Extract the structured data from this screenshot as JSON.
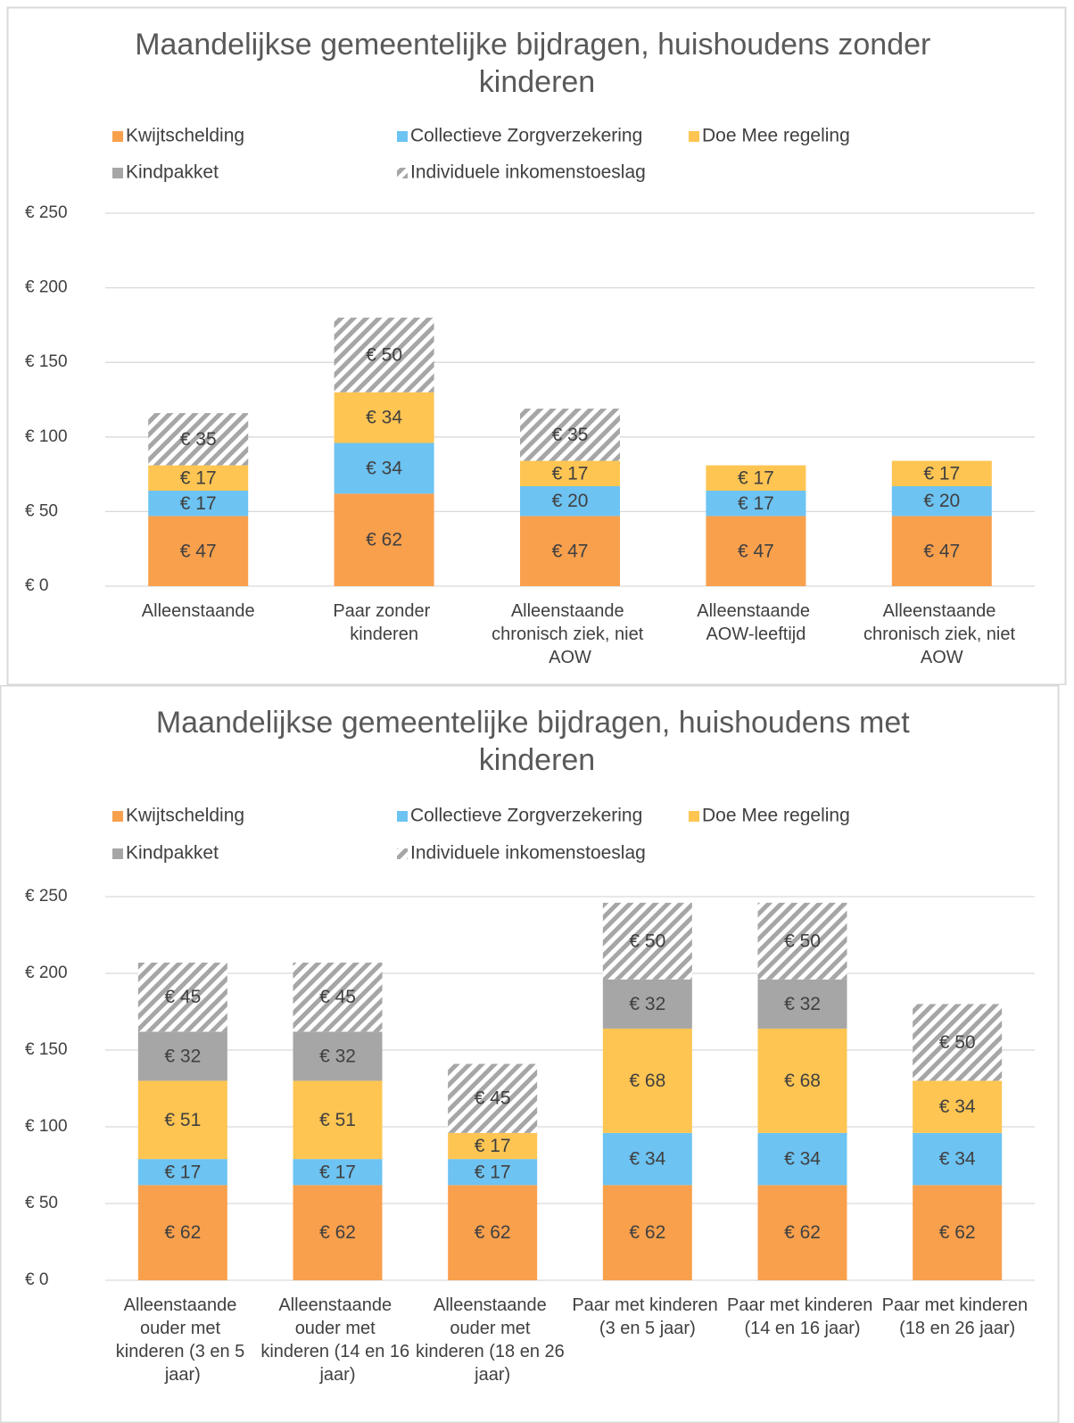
{
  "chart_data": [
    {
      "type": "stacked_bar",
      "title": "Maandelijkse gemeentelijke bijdragen, huishoudens zonder kinderen",
      "categories": [
        "Alleenstaande",
        "Paar zonder kinderen",
        "Alleenstaande chronisch ziek, niet AOW",
        "Alleenstaande AOW-leeftijd",
        "Alleenstaande chronisch ziek, niet AOW"
      ],
      "series": [
        {
          "name": "Kwijtschelding",
          "color": "#f9a04d",
          "values": [
            47,
            62,
            47,
            47,
            47
          ],
          "value_labels": [
            "€ 47",
            "€ 62",
            "€ 47",
            "€ 47",
            "€ 47"
          ]
        },
        {
          "name": "Collectieve Zorgverzekering",
          "color": "#6dc3f2",
          "values": [
            17,
            34,
            20,
            17,
            20
          ],
          "value_labels": [
            "€ 17",
            "€ 34",
            "€ 20",
            "€ 17",
            "€ 20"
          ]
        },
        {
          "name": "Doe Mee regeling",
          "color": "#fec552",
          "values": [
            17,
            34,
            17,
            17,
            17
          ],
          "value_labels": [
            "€ 17",
            "€ 34",
            "€ 17",
            "€ 17",
            "€ 17"
          ]
        },
        {
          "name": "Kindpakket",
          "color": "#a6a6a6",
          "values": [
            null,
            null,
            null,
            null,
            null
          ],
          "value_labels": [
            null,
            null,
            null,
            null,
            null
          ]
        },
        {
          "name": "Individuele inkomenstoeslag",
          "color": "#a6a6a6",
          "pattern": "hatch",
          "values": [
            35,
            50,
            35,
            null,
            null
          ],
          "value_labels": [
            "€ 35",
            "€ 50",
            "€ 35",
            null,
            null
          ]
        }
      ],
      "ylim": [
        0,
        250
      ],
      "yticks": [
        {
          "value": 0,
          "label": "€ 0"
        },
        {
          "value": 50,
          "label": "€ 50"
        },
        {
          "value": 100,
          "label": "€ 100"
        },
        {
          "value": 150,
          "label": "€ 150"
        },
        {
          "value": 200,
          "label": "€ 200"
        },
        {
          "value": 250,
          "label": "€ 250"
        }
      ],
      "grid": true,
      "legend": "top"
    },
    {
      "type": "stacked_bar",
      "title": "Maandelijkse gemeentelijke bijdragen, huishoudens met kinderen",
      "categories": [
        "Alleenstaande ouder met kinderen (3 en 5 jaar)",
        "Alleenstaande ouder met kinderen (14 en 16 jaar)",
        "Alleenstaande ouder met kinderen (18 en 26 jaar)",
        "Paar met kinderen (3 en 5 jaar)",
        "Paar met kinderen (14 en 16 jaar)",
        "Paar met kinderen (18 en 26 jaar)"
      ],
      "series": [
        {
          "name": "Kwijtschelding",
          "color": "#f9a04d",
          "values": [
            62,
            62,
            62,
            62,
            62,
            62
          ],
          "value_labels": [
            "€ 62",
            "€ 62",
            "€ 62",
            "€ 62",
            "€ 62",
            "€ 62"
          ]
        },
        {
          "name": "Collectieve Zorgverzekering",
          "color": "#6dc3f2",
          "values": [
            17,
            17,
            17,
            34,
            34,
            34
          ],
          "value_labels": [
            "€ 17",
            "€ 17",
            "€ 17",
            "€ 34",
            "€ 34",
            "€ 34"
          ]
        },
        {
          "name": "Doe Mee regeling",
          "color": "#fec552",
          "values": [
            51,
            51,
            17,
            68,
            68,
            34
          ],
          "value_labels": [
            "€ 51",
            "€ 51",
            "€ 17",
            "€ 68",
            "€ 68",
            "€ 34"
          ]
        },
        {
          "name": "Kindpakket",
          "color": "#a6a6a6",
          "values": [
            32,
            32,
            null,
            32,
            32,
            null
          ],
          "value_labels": [
            "€ 32",
            "€ 32",
            null,
            "€ 32",
            "€ 32",
            null
          ]
        },
        {
          "name": "Individuele inkomenstoeslag",
          "color": "#a6a6a6",
          "pattern": "hatch",
          "values": [
            45,
            45,
            45,
            50,
            50,
            50
          ],
          "value_labels": [
            "€ 45",
            "€ 45",
            "€ 45",
            "€ 50",
            "€ 50",
            "€ 50"
          ]
        }
      ],
      "ylim": [
        0,
        250
      ],
      "yticks": [
        {
          "value": 0,
          "label": "€ 0"
        },
        {
          "value": 50,
          "label": "€ 50"
        },
        {
          "value": 100,
          "label": "€ 100"
        },
        {
          "value": 150,
          "label": "€ 150"
        },
        {
          "value": 200,
          "label": "€ 200"
        },
        {
          "value": 250,
          "label": "€ 250"
        }
      ],
      "grid": true,
      "legend": "top"
    }
  ]
}
